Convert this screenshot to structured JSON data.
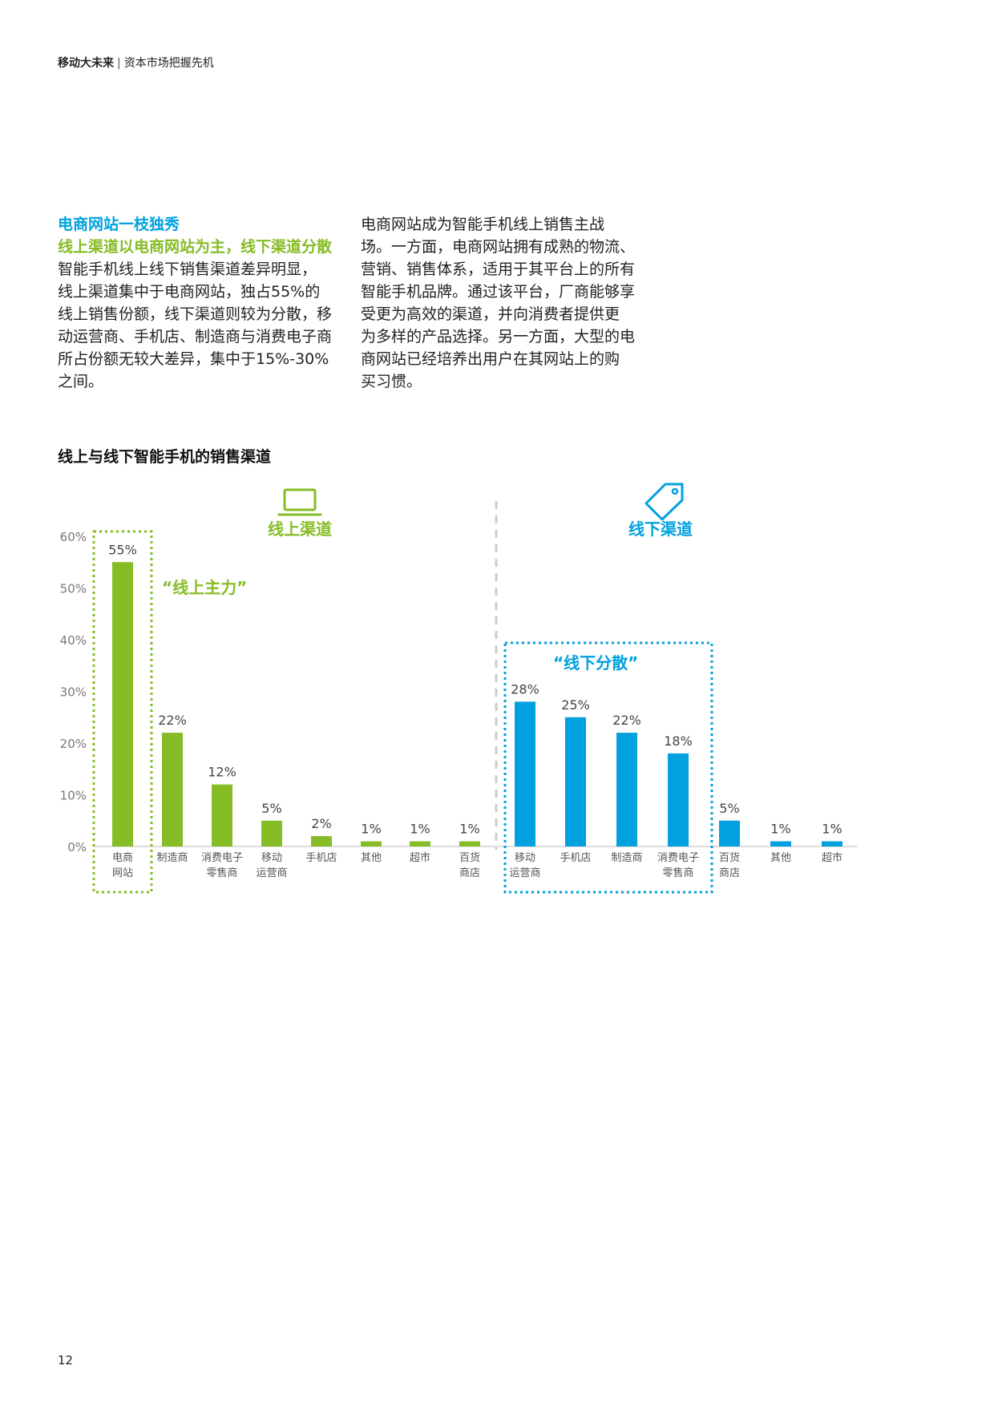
{
  "header": {
    "brand": "移动大未来",
    "separator": "|",
    "subtitle": "资本市场把握先机"
  },
  "left_column": {
    "heading_blue": "电商网站一枝独秀",
    "heading_green": "线上渠道以电商网站为主，线下渠道分散",
    "lines": [
      "智能手机线上线下销售渠道差异明显，",
      "线上渠道集中于电商网站，独占55%的",
      "线上销售份额，线下渠道则较为分散，移",
      "动运营商、手机店、制造商与消费电子商",
      "所占份额无较大差异，集中于15%-30%",
      "之间。"
    ]
  },
  "right_column": {
    "lines": [
      "电商网站成为智能手机线上销售主战",
      "场。一方面，电商网站拥有成熟的物流、",
      "营销、销售体系，适用于其平台上的所有",
      "智能手机品牌。通过该平台，厂商能够享",
      "受更为高效的渠道，并向消费者提供更",
      "为多样的产品选择。另一方面，大型的电",
      "商网站已经培养出用户在其网站上的购",
      "买习惯。"
    ]
  },
  "chart_title": "线上与线下智能手机的销售渠道",
  "colors": {
    "online": "#86bc25",
    "offline": "#00a1de",
    "axis_text": "#777777",
    "divider": "#cccccc"
  },
  "chart_data": {
    "type": "bar",
    "ylim": [
      0,
      60
    ],
    "yticks": [
      "0%",
      "10%",
      "20%",
      "30%",
      "40%",
      "50%",
      "60%"
    ],
    "grid": false,
    "groups": [
      {
        "name": "线上渠道",
        "icon": "laptop-icon",
        "callout": "“线上主力”",
        "categories": [
          [
            "电商",
            "网站"
          ],
          [
            "制造商"
          ],
          [
            "消费电子",
            "零售商"
          ],
          [
            "移动",
            "运营商"
          ],
          [
            "手机店"
          ],
          [
            "其他"
          ],
          [
            "超市"
          ],
          [
            "百货",
            "商店"
          ]
        ],
        "values": [
          55,
          22,
          12,
          5,
          2,
          1,
          1,
          1
        ],
        "labels": [
          "55%",
          "22%",
          "12%",
          "5%",
          "2%",
          "1%",
          "1%",
          "1%"
        ]
      },
      {
        "name": "线下渠道",
        "icon": "price-tag-icon",
        "callout": "“线下分散”",
        "categories": [
          [
            "移动",
            "运营商"
          ],
          [
            "手机店"
          ],
          [
            "制造商"
          ],
          [
            "消费电子",
            "零售商"
          ],
          [
            "百货",
            "商店"
          ],
          [
            "其他"
          ],
          [
            "超市"
          ]
        ],
        "values": [
          28,
          25,
          22,
          18,
          5,
          1,
          1
        ],
        "labels": [
          "28%",
          "25%",
          "22%",
          "18%",
          "5%",
          "1%",
          "1%"
        ]
      }
    ]
  },
  "page_number": "12"
}
